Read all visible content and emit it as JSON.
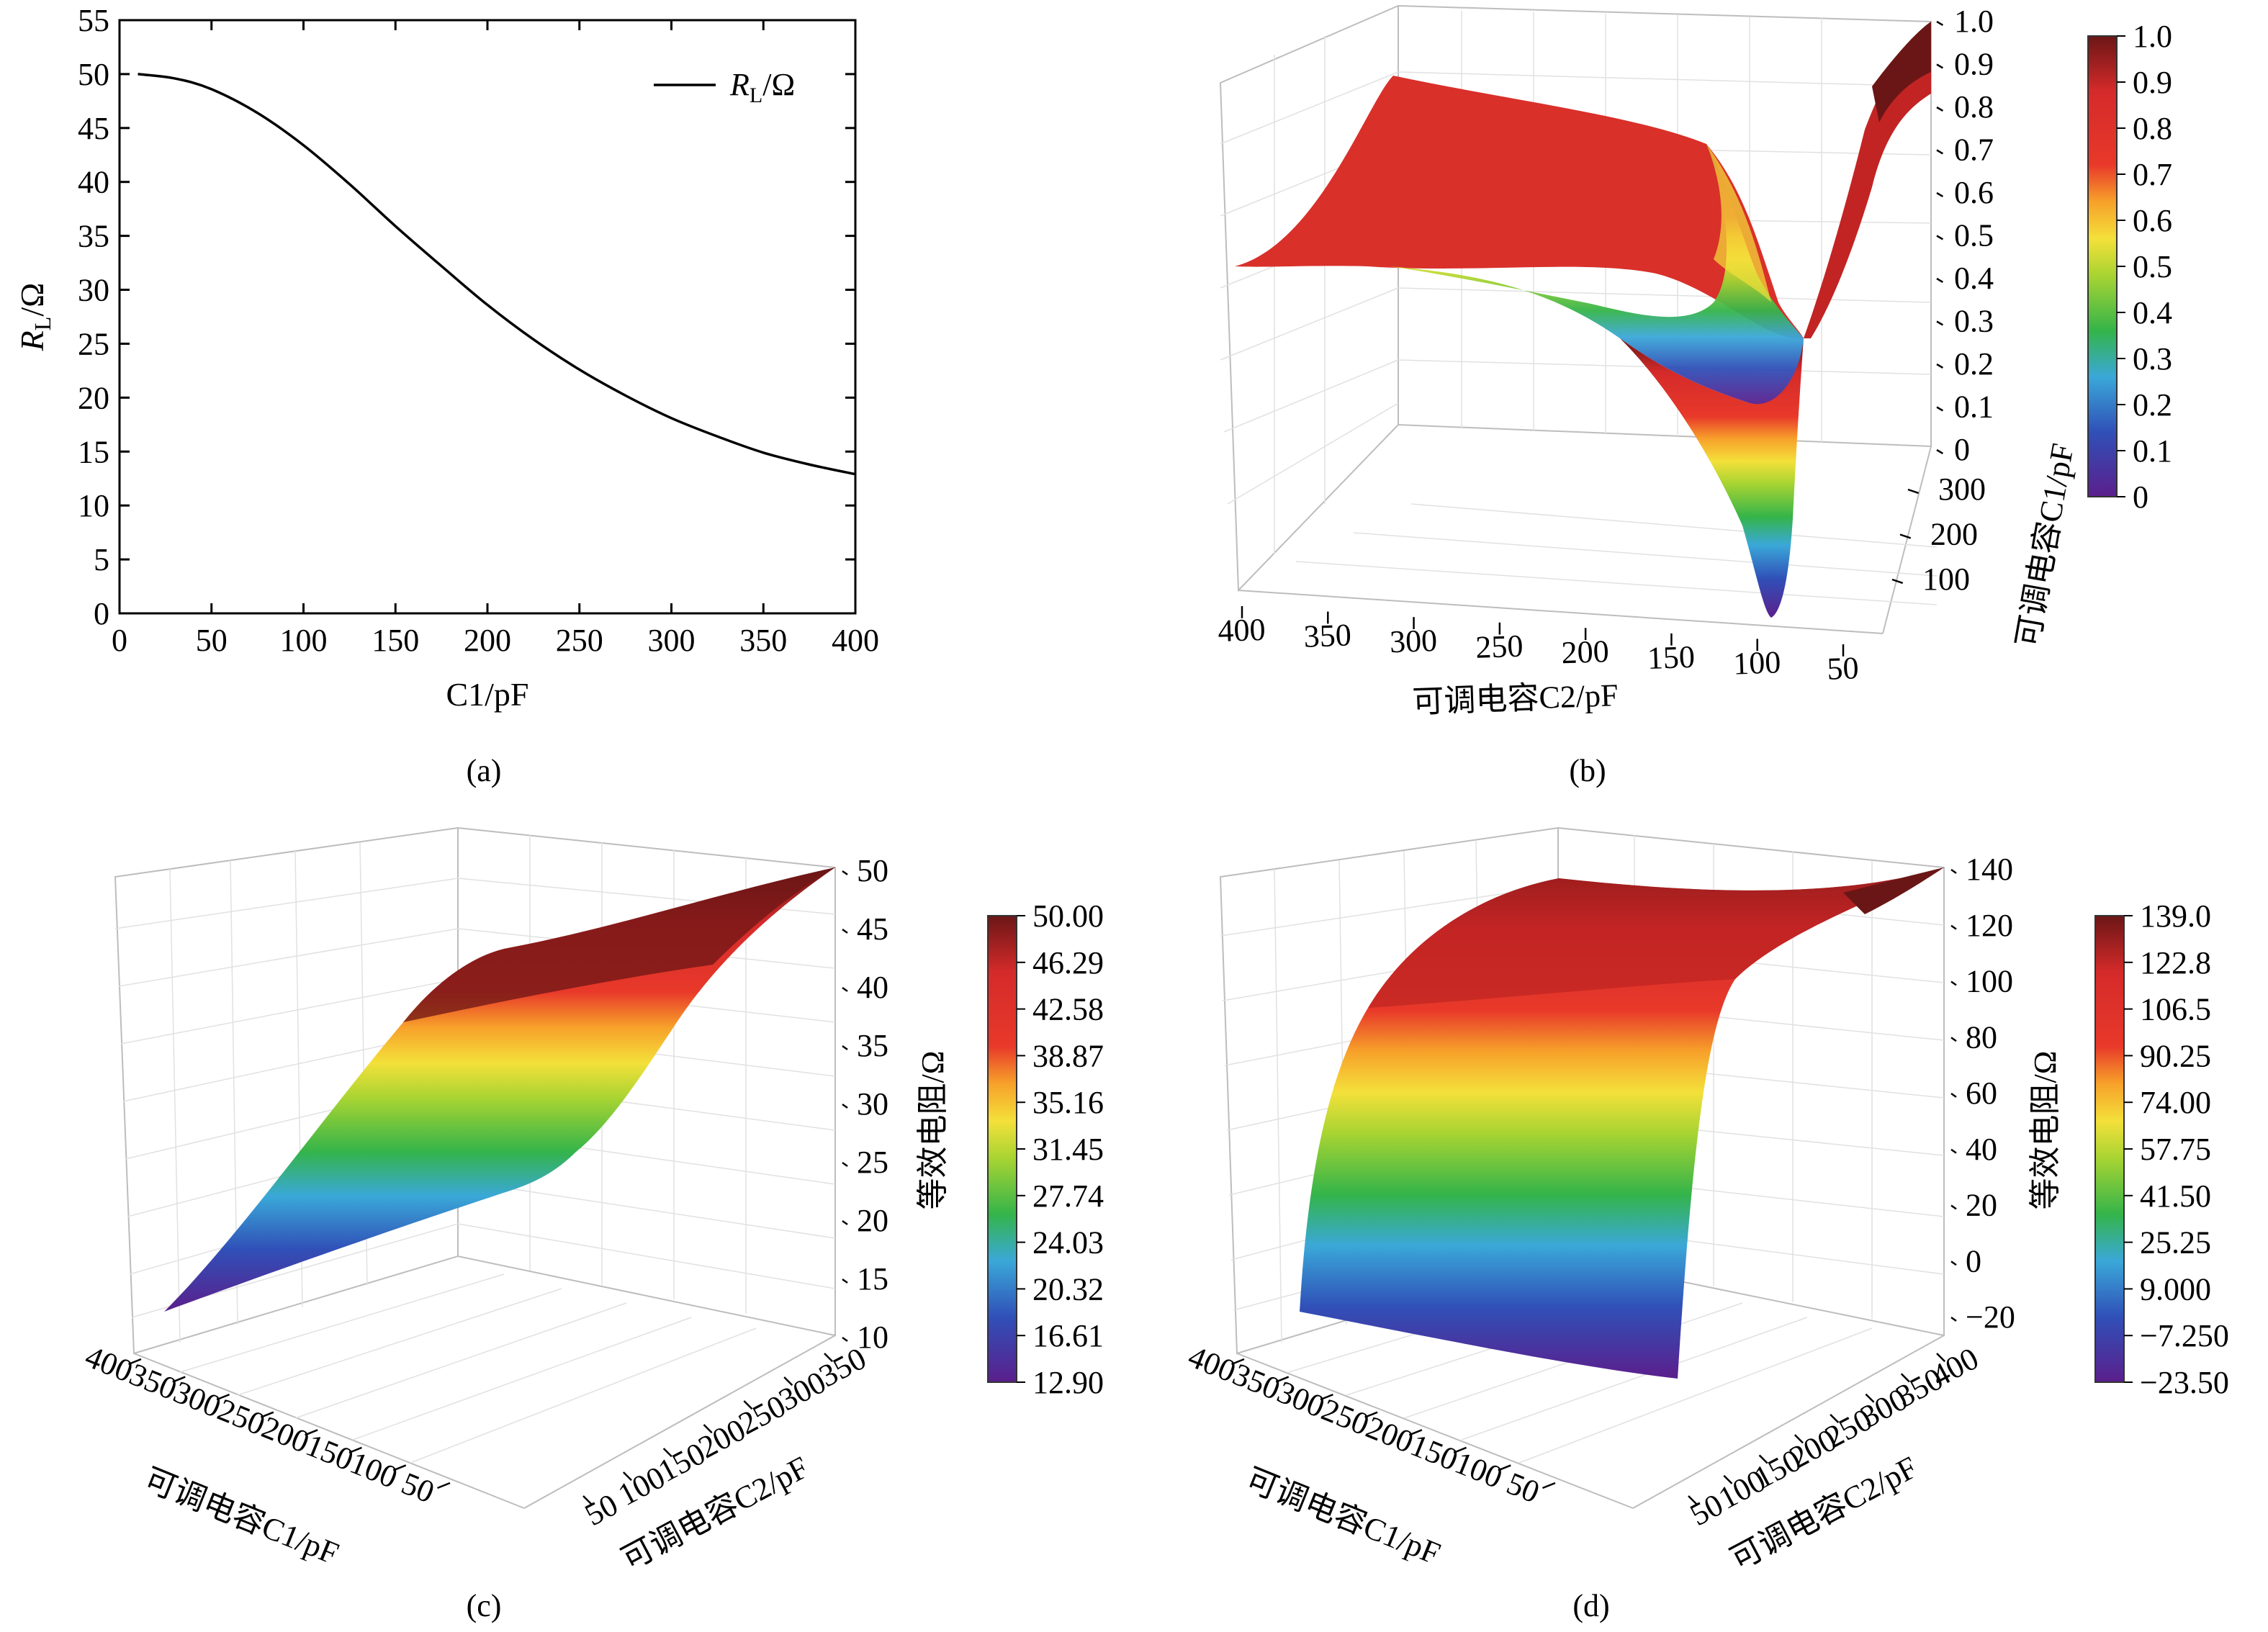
{
  "chart_data": [
    {
      "panel": "(a)",
      "type": "line",
      "xlabel": "C1/pF",
      "ylabel": "R_L/Ω",
      "xlim": [
        0,
        400
      ],
      "ylim": [
        0,
        55
      ],
      "xticks": [
        "0",
        "50",
        "100",
        "150",
        "200",
        "250",
        "300",
        "350",
        "400"
      ],
      "yticks": [
        "0",
        "5",
        "10",
        "15",
        "20",
        "25",
        "30",
        "35",
        "40",
        "45",
        "50",
        "55"
      ],
      "legend": "top-right",
      "grid": false,
      "series": [
        {
          "name": "R_L/Ω",
          "x": [
            10,
            30,
            50,
            75,
            100,
            125,
            150,
            175,
            200,
            225,
            250,
            275,
            300,
            325,
            350,
            375,
            400
          ],
          "values": [
            50.0,
            49.6,
            48.6,
            46.4,
            43.4,
            39.8,
            35.9,
            32.2,
            28.6,
            25.4,
            22.6,
            20.2,
            18.1,
            16.4,
            14.9,
            13.8,
            12.9
          ]
        }
      ]
    },
    {
      "panel": "(b)",
      "type": "surface3d",
      "xlabel": "可调电容C2/pF",
      "ylabel": "可调电容C1/pF",
      "zlim": [
        0,
        1.0
      ],
      "xticks": [
        "400",
        "350",
        "300",
        "250",
        "200",
        "150",
        "100",
        "50"
      ],
      "yticks": [
        "300",
        "200",
        "100"
      ],
      "zticks": [
        "0",
        "0.1",
        "0.2",
        "0.3",
        "0.4",
        "0.5",
        "0.6",
        "0.7",
        "0.8",
        "0.9",
        "1.0"
      ],
      "colorbar": {
        "min": 0,
        "max": 1.0,
        "ticks": [
          "0",
          "0.1",
          "0.2",
          "0.3",
          "0.4",
          "0.5",
          "0.6",
          "0.7",
          "0.8",
          "0.9",
          "1.0"
        ]
      }
    },
    {
      "panel": "(c)",
      "type": "surface3d",
      "xlabel": "可调电容C1/pF",
      "ylabel": "可调电容C2/pF",
      "zlabel": "等效电阻/Ω",
      "zlim": [
        10,
        50
      ],
      "xticks": [
        "400",
        "350",
        "300",
        "250",
        "200",
        "150",
        "100",
        "50"
      ],
      "yticks": [
        "50",
        "100",
        "150",
        "200",
        "250",
        "300",
        "350"
      ],
      "zticks": [
        "10",
        "15",
        "20",
        "25",
        "30",
        "35",
        "40",
        "45",
        "50"
      ],
      "colorbar": {
        "min": 12.9,
        "max": 50.0,
        "ticks": [
          "50.00",
          "46.29",
          "42.58",
          "38.87",
          "35.16",
          "31.45",
          "27.74",
          "24.03",
          "20.32",
          "16.61",
          "12.90"
        ]
      }
    },
    {
      "panel": "(d)",
      "type": "surface3d",
      "xlabel": "可调电容C1/pF",
      "ylabel": "可调电容C2/pF",
      "zlabel": "等效电阻/Ω",
      "zlim": [
        -20,
        140
      ],
      "xticks": [
        "400",
        "350",
        "300",
        "250",
        "200",
        "150",
        "100",
        "50"
      ],
      "yticks": [
        "50",
        "100",
        "150",
        "200",
        "250",
        "300",
        "350",
        "400"
      ],
      "zticks": [
        "140",
        "120",
        "100",
        "80",
        "60",
        "40",
        "20",
        "0",
        "−20"
      ],
      "colorbar": {
        "min": -23.5,
        "max": 139.0,
        "ticks": [
          "139.0",
          "122.8",
          "106.5",
          "90.25",
          "74.00",
          "57.75",
          "41.50",
          "25.25",
          "9.000",
          "−7.250",
          "−23.50"
        ]
      }
    }
  ],
  "captions": [
    "(a)",
    "(b)",
    "(c)",
    "(d)"
  ],
  "colors": {
    "spectral": [
      "#5b1f8c",
      "#3050b8",
      "#3aa8d8",
      "#34b44a",
      "#a8d432",
      "#f4e03a",
      "#f7a12a",
      "#e8392a",
      "#d42a2a",
      "#6b1616"
    ],
    "axis": "#000000",
    "grid": "#cfcfcf",
    "curve": "#000000"
  }
}
